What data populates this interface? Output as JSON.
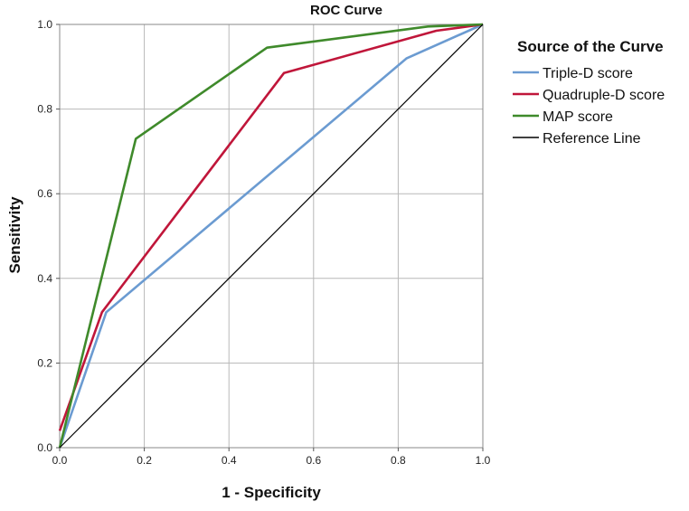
{
  "chart_data": {
    "type": "line",
    "title": "ROC Curve",
    "xlabel": "1 - Specificity",
    "ylabel": "Sensitivity",
    "xlim": [
      0,
      1
    ],
    "ylim": [
      0,
      1
    ],
    "x_ticks": [
      "0.0",
      "0.2",
      "0.4",
      "0.6",
      "0.8",
      "1.0"
    ],
    "y_ticks": [
      "0.0",
      "0.2",
      "0.4",
      "0.6",
      "0.8",
      "1.0"
    ],
    "grid": true,
    "legend_title": "Source of the Curve",
    "legend_position": "right",
    "series": [
      {
        "name": "Triple-D score",
        "color": "#6b9bd1",
        "points": [
          [
            0.0,
            0.0
          ],
          [
            0.11,
            0.32
          ],
          [
            0.82,
            0.92
          ],
          [
            1.0,
            1.0
          ]
        ]
      },
      {
        "name": "Quadruple-D score",
        "color": "#c0163a",
        "points": [
          [
            0.0,
            0.04
          ],
          [
            0.1,
            0.32
          ],
          [
            0.53,
            0.885
          ],
          [
            0.89,
            0.985
          ],
          [
            1.0,
            1.0
          ]
        ]
      },
      {
        "name": "MAP score",
        "color": "#3f8a2b",
        "points": [
          [
            0.0,
            0.0
          ],
          [
            0.18,
            0.73
          ],
          [
            0.49,
            0.945
          ],
          [
            0.87,
            0.995
          ],
          [
            1.0,
            1.0
          ]
        ]
      },
      {
        "name": "Reference Line",
        "color": "#000000",
        "points": [
          [
            0.0,
            0.0
          ],
          [
            1.0,
            1.0
          ]
        ]
      }
    ]
  }
}
